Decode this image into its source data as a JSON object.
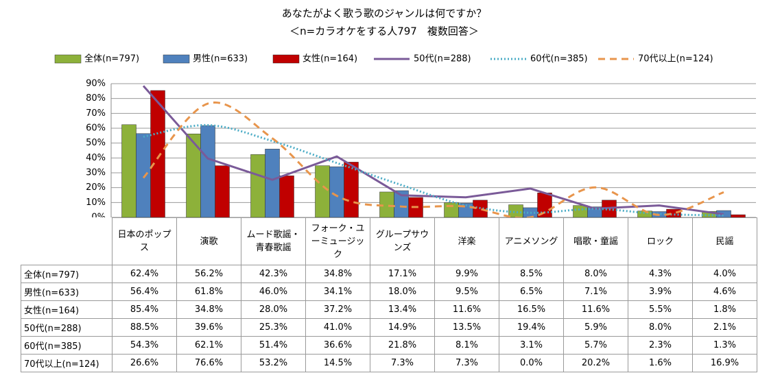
{
  "chart_data": {
    "type": "bar",
    "title": "あなたがよく歌う歌のジャンルは何ですか？",
    "subtitle": "＜n=カラオケをする人797　複数回答＞",
    "categories": [
      "日本のポップス",
      "演歌",
      "ムード歌謡・青春歌謡",
      "フォーク・ユーミュージック",
      "グループサウンズ",
      "洋楽",
      "アニメソング",
      "唱歌・童謡",
      "ロック",
      "民謡"
    ],
    "ylim": [
      0,
      90
    ],
    "yticks": [
      {
        "value": 0,
        "label": "0%"
      },
      {
        "value": 10,
        "label": "10%"
      },
      {
        "value": 20,
        "label": "20%"
      },
      {
        "value": 30,
        "label": "30%"
      },
      {
        "value": 40,
        "label": "40%"
      },
      {
        "value": 50,
        "label": "50%"
      },
      {
        "value": 60,
        "label": "60%"
      },
      {
        "value": 70,
        "label": "70%"
      },
      {
        "value": 80,
        "label": "80%"
      },
      {
        "value": 90,
        "label": "90%"
      }
    ],
    "grid": true,
    "series": [
      {
        "name": "全体(n=797)",
        "type": "bar",
        "color": "#8db13a",
        "values": [
          62.4,
          56.2,
          42.3,
          34.8,
          17.1,
          9.9,
          8.5,
          8.0,
          4.3,
          4.0
        ],
        "value_labels": [
          "62.4%",
          "56.2%",
          "42.3%",
          "34.8%",
          "17.1%",
          "9.9%",
          "8.5%",
          "8.0%",
          "4.3%",
          "4.0%"
        ]
      },
      {
        "name": "男性(n=633)",
        "type": "bar",
        "color": "#4f81bd",
        "values": [
          56.4,
          61.8,
          46.0,
          34.1,
          18.0,
          9.5,
          6.5,
          7.1,
          3.9,
          4.6
        ],
        "value_labels": [
          "56.4%",
          "61.8%",
          "46.0%",
          "34.1%",
          "18.0%",
          "9.5%",
          "6.5%",
          "7.1%",
          "3.9%",
          "4.6%"
        ]
      },
      {
        "name": "女性(n=164)",
        "type": "bar",
        "color": "#c00000",
        "values": [
          85.4,
          34.8,
          28.0,
          37.2,
          13.4,
          11.6,
          16.5,
          11.6,
          5.5,
          1.8
        ],
        "value_labels": [
          "85.4%",
          "34.8%",
          "28.0%",
          "37.2%",
          "13.4%",
          "11.6%",
          "16.5%",
          "11.6%",
          "5.5%",
          "1.8%"
        ]
      },
      {
        "name": "50代(n=288)",
        "type": "line",
        "color": "#7a5a98",
        "dash": "solid",
        "smooth": false,
        "values": [
          88.5,
          39.6,
          25.3,
          41.0,
          14.9,
          13.5,
          19.4,
          5.9,
          8.0,
          2.1
        ],
        "value_labels": [
          "88.5%",
          "39.6%",
          "25.3%",
          "41.0%",
          "14.9%",
          "13.5%",
          "19.4%",
          "5.9%",
          "8.0%",
          "2.1%"
        ]
      },
      {
        "name": "60代(n=385)",
        "type": "line",
        "color": "#4bacc6",
        "dash": "dotted",
        "smooth": true,
        "values": [
          54.3,
          62.1,
          51.4,
          36.6,
          21.8,
          8.1,
          3.1,
          5.7,
          2.3,
          1.3
        ],
        "value_labels": [
          "54.3%",
          "62.1%",
          "51.4%",
          "36.6%",
          "21.8%",
          "8.1%",
          "3.1%",
          "5.7%",
          "2.3%",
          "1.3%"
        ]
      },
      {
        "name": "70代以上(n=124)",
        "type": "line",
        "color": "#e8954c",
        "dash": "dashed",
        "smooth": true,
        "values": [
          26.6,
          76.6,
          53.2,
          14.5,
          7.3,
          7.3,
          0.0,
          20.2,
          1.6,
          16.9
        ],
        "value_labels": [
          "26.6%",
          "76.6%",
          "53.2%",
          "14.5%",
          "7.3%",
          "7.3%",
          "0.0%",
          "20.2%",
          "1.6%",
          "16.9%"
        ]
      }
    ]
  }
}
